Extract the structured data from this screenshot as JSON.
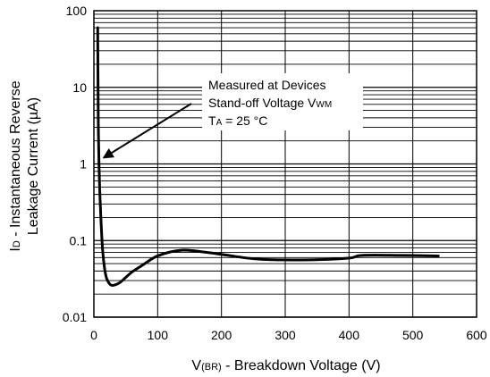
{
  "chart_data": {
    "type": "line",
    "title": "",
    "xlabel": {
      "main": "V",
      "sub": "(BR)",
      "rest": " - Breakdown Voltage (V)"
    },
    "ylabel": {
      "line1_main": "I",
      "line1_sub": "D",
      "line1_rest": " - Instantaneous Reverse",
      "line2": "Leakage Current (µA)"
    },
    "x_scale": "linear",
    "y_scale": "log",
    "xlim": [
      0,
      600
    ],
    "ylim": [
      0.01,
      100
    ],
    "x_ticks": [
      "0",
      "100",
      "200",
      "300",
      "400",
      "500",
      "600"
    ],
    "y_ticks": [
      "0.01",
      "0.1",
      "1",
      "10",
      "100"
    ],
    "grid": true,
    "legend": "none",
    "series": [
      {
        "x": [
          6,
          6.5,
          7,
          8,
          9,
          10,
          12,
          14,
          17,
          20,
          25,
          30,
          40,
          50,
          60,
          75,
          90,
          100,
          120,
          140,
          160,
          200,
          260,
          340,
          400,
          420,
          480,
          540
        ],
        "y": [
          60,
          10,
          3,
          1.0,
          0.5,
          0.3,
          0.13,
          0.07,
          0.042,
          0.032,
          0.027,
          0.026,
          0.028,
          0.033,
          0.039,
          0.047,
          0.057,
          0.063,
          0.071,
          0.075,
          0.073,
          0.066,
          0.057,
          0.056,
          0.059,
          0.064,
          0.064,
          0.063
        ]
      }
    ],
    "annotations": [
      {
        "lines": [
          {
            "text": "Measured at Devices"
          },
          {
            "text": "Stand-off Voltage V",
            "sub": "WM"
          },
          {
            "text": "T",
            "sub": "A",
            "rest": " = 25 °C"
          }
        ],
        "arrow_to": {
          "x": 15,
          "y": 1.2
        }
      }
    ]
  }
}
